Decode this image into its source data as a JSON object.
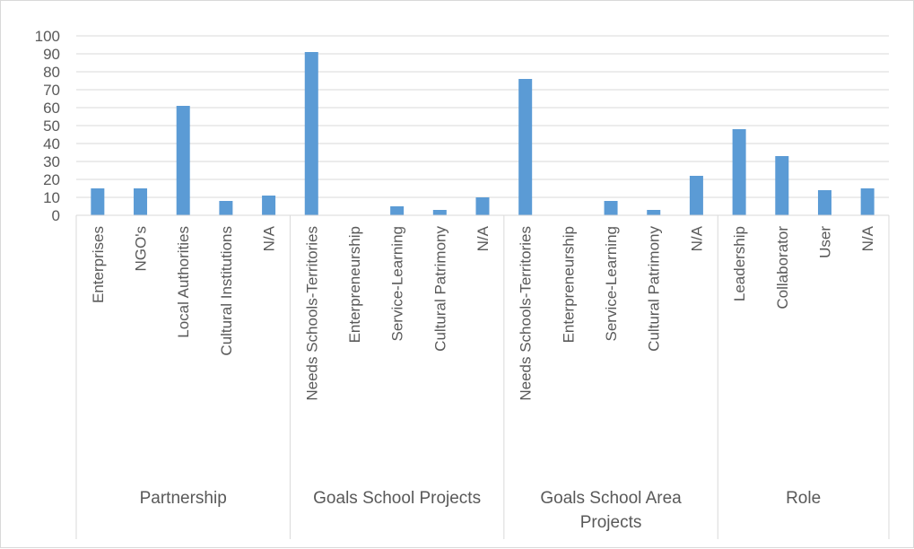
{
  "chart_data": {
    "type": "bar",
    "title": "",
    "xlabel": "",
    "ylabel": "",
    "ylim": [
      0,
      100
    ],
    "yticks": [
      0,
      10,
      20,
      30,
      40,
      50,
      60,
      70,
      80,
      90,
      100
    ],
    "grid": true,
    "legend": "none",
    "bar_color": "#5b9bd5",
    "groups": [
      {
        "name": "Partnership",
        "categories": [
          "Enterprises",
          "NGO's",
          "Local Authorities",
          "Cultural Institutions",
          "N/A"
        ],
        "values": [
          15,
          15,
          61,
          8,
          11
        ]
      },
      {
        "name": "Goals School Projects",
        "categories": [
          "Needs Schools-Territories",
          "Enterpreneurship",
          "Service-Learning",
          "Cultural Patrimony",
          "N/A"
        ],
        "values": [
          91,
          0,
          5,
          3,
          10
        ]
      },
      {
        "name": "Goals School Area Projects",
        "categories": [
          "Needs Schools-Territories",
          "Enterpreneurship",
          "Service-Learning",
          "Cultural Patrimony",
          "N/A"
        ],
        "values": [
          76,
          0,
          8,
          3,
          22
        ]
      },
      {
        "name": "Role",
        "categories": [
          "Leadership",
          "Collaborator",
          "User",
          "N/A"
        ],
        "values": [
          48,
          33,
          14,
          15
        ]
      }
    ]
  }
}
